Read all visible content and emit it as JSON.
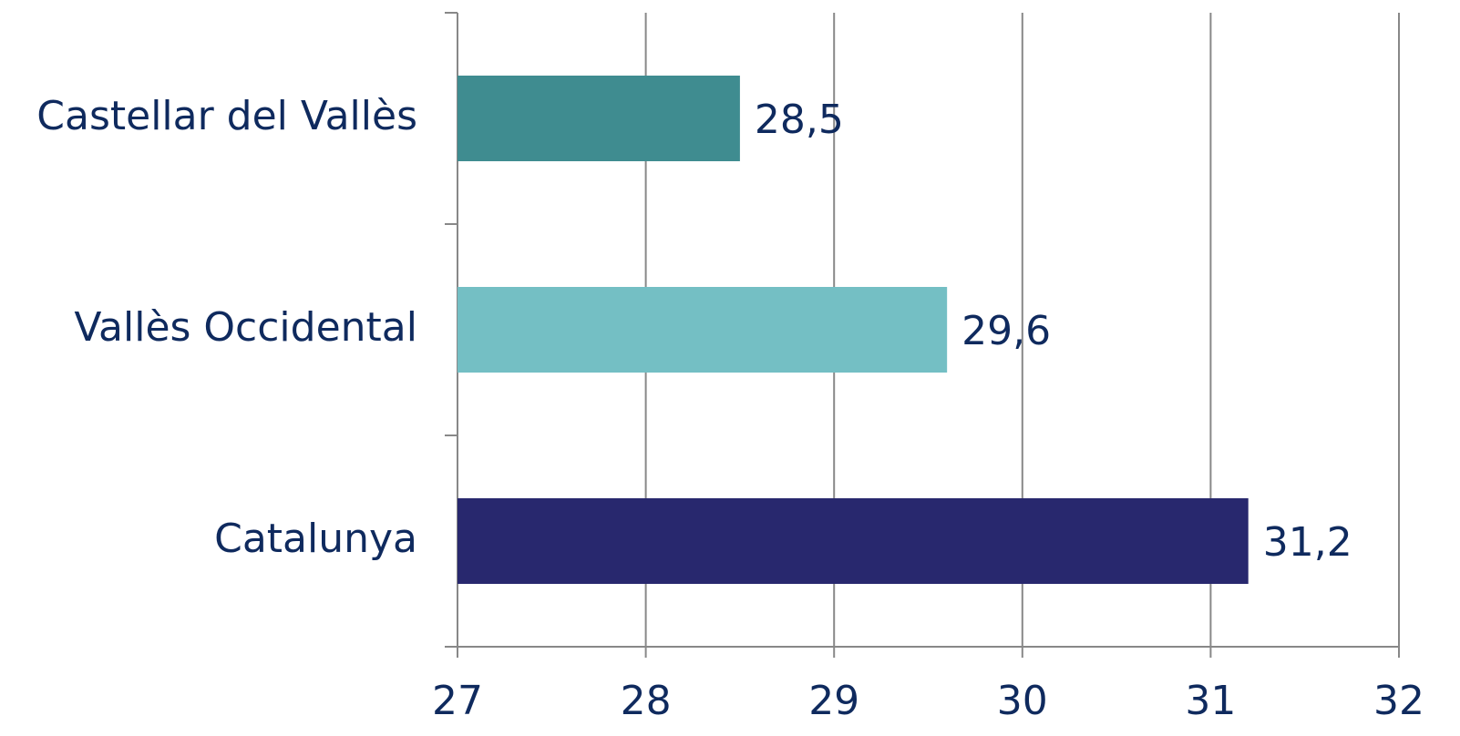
{
  "chart_data": {
    "type": "barh",
    "categories": [
      "Castellar del Vallès",
      "Vallès Occidental",
      "Catalunya"
    ],
    "values": [
      28.5,
      29.6,
      31.2
    ],
    "value_labels": [
      "28,5",
      "29,6",
      "31,2"
    ],
    "colors": [
      "#3f8c90",
      "#74bfc4",
      "#28286e"
    ],
    "xlim": [
      27,
      32
    ],
    "xticks": [
      27,
      28,
      29,
      30,
      31,
      32
    ],
    "grid": true
  }
}
